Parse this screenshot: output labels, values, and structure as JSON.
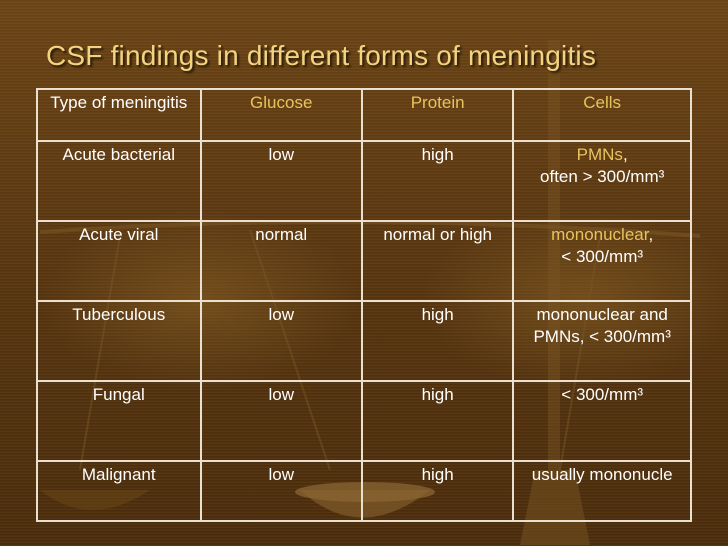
{
  "title": "CSF findings in different forms of meningitis",
  "headers": {
    "type": "Type of meningitis",
    "glucose": "Glucose",
    "protein": "Protein",
    "cells": "Cells"
  },
  "rows": [
    {
      "type": "Acute bacterial",
      "glucose": "low",
      "protein": "high",
      "cells_a": "PMNs",
      "cells_b": ",",
      "cells_c": "often > 300/mm³"
    },
    {
      "type": "Acute viral",
      "glucose": "normal",
      "protein": "normal or high",
      "cells_a": "mononuclear",
      "cells_b": ",",
      "cells_c": "< 300/mm³"
    },
    {
      "type": "Tuberculous",
      "glucose": "low",
      "protein": "high",
      "cells": "mononuclear and PMNs, < 300/mm³"
    },
    {
      "type": "Fungal",
      "glucose": "low",
      "protein": "high",
      "cells": "< 300/mm³"
    },
    {
      "type": "Malignant",
      "glucose": "low",
      "protein": "high",
      "cells": "usually mononucle"
    }
  ],
  "colors": {
    "background": "#5b3812",
    "title": "#f2d480",
    "header_accent": "#e8c35c",
    "cell_text": "#ffffff",
    "grid": "#e9e0cf"
  },
  "icons": [
    "balance-scale-illustration"
  ]
}
